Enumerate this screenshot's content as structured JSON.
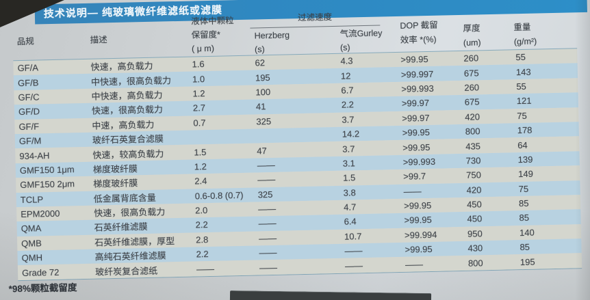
{
  "title_bar": {
    "text": "技术说明— 纯玻璃微纤维滤纸或滤膜"
  },
  "table": {
    "headers": {
      "product": "品规",
      "description": "描述",
      "retention": [
        "液体中颗粒",
        "保留度*",
        "( μ m)"
      ],
      "speed_group": "过滤速度",
      "herzberg": [
        "Herzberg",
        "(s)"
      ],
      "gurley": [
        "气流Gurley",
        "(s)"
      ],
      "dop": [
        "DOP 截留",
        "效率 *(%)"
      ],
      "thickness": [
        "厚度",
        "(um)"
      ],
      "weight": [
        "重量",
        "(g/m²)"
      ]
    },
    "rows": [
      {
        "product": "GF/A",
        "description": "快速，高负载力",
        "retention": "1.6",
        "herzberg": "62",
        "gurley": "4.3",
        "dop": ">99.95",
        "thickness": "260",
        "weight": "55"
      },
      {
        "product": "GF/B",
        "description": "中快速，很高负载力",
        "retention": "1.0",
        "herzberg": "195",
        "gurley": "12",
        "dop": ">99.997",
        "thickness": "675",
        "weight": "143"
      },
      {
        "product": "GF/C",
        "description": "中快速，高负载力",
        "retention": "1.2",
        "herzberg": "100",
        "gurley": "6.7",
        "dop": ">99.993",
        "thickness": "260",
        "weight": "55"
      },
      {
        "product": "GF/D",
        "description": "快速，很高负载力",
        "retention": "2.7",
        "herzberg": "41",
        "gurley": "2.2",
        "dop": ">99.97",
        "thickness": "675",
        "weight": "121"
      },
      {
        "product": "GF/F",
        "description": "中速，高负载力",
        "retention": "0.7",
        "herzberg": "325",
        "gurley": "3.7",
        "dop": ">99.97",
        "thickness": "420",
        "weight": "75"
      },
      {
        "product": "GF/M",
        "description": "玻纤石英复合滤膜",
        "retention": "",
        "herzberg": "",
        "gurley": "14.2",
        "dop": ">99.95",
        "thickness": "800",
        "weight": "178"
      },
      {
        "product": "934-AH",
        "description": "快速，较高负载力",
        "retention": "1.5",
        "herzberg": "47",
        "gurley": "3.7",
        "dop": ">99.95",
        "thickness": "435",
        "weight": "64"
      },
      {
        "product": "GMF150 1μm",
        "description": "梯度玻纤膜",
        "retention": "1.2",
        "herzberg": "——",
        "gurley": "3.1",
        "dop": ">99.993",
        "thickness": "730",
        "weight": "139"
      },
      {
        "product": "GMF150 2μm",
        "description": "梯度玻纤膜",
        "retention": "2.4",
        "herzberg": "——",
        "gurley": "1.5",
        "dop": ">99.7",
        "thickness": "750",
        "weight": "149"
      },
      {
        "product": "TCLP",
        "description": "低金属背底含量",
        "retention": "0.6-0.8 (0.7)",
        "herzberg": "325",
        "gurley": "3.8",
        "dop": "——",
        "thickness": "420",
        "weight": "75"
      },
      {
        "product": "EPM2000",
        "description": "快速，很高负载力",
        "retention": "2.0",
        "herzberg": "——",
        "gurley": "4.7",
        "dop": ">99.95",
        "thickness": "450",
        "weight": "85"
      },
      {
        "product": "QMA",
        "description": "石英纤维滤膜",
        "retention": "2.2",
        "herzberg": "——",
        "gurley": "6.4",
        "dop": ">99.95",
        "thickness": "450",
        "weight": "85"
      },
      {
        "product": "QMB",
        "description": "石英纤维滤膜，厚型",
        "retention": "2.8",
        "herzberg": "——",
        "gurley": "10.7",
        "dop": ">99.994",
        "thickness": "950",
        "weight": "140"
      },
      {
        "product": "QMH",
        "description": "高纯石英纤维滤膜",
        "retention": "2.2",
        "herzberg": "——",
        "gurley": "——",
        "dop": ">99.95",
        "thickness": "430",
        "weight": "85"
      },
      {
        "product": "Grade 72",
        "description": "玻纤炭复合滤纸",
        "retention": "——",
        "herzberg": "——",
        "gurley": "——",
        "dop": "——",
        "thickness": "800",
        "weight": "195"
      }
    ]
  },
  "footnote": "*98%颗粒截留度",
  "colors": {
    "title_bar_blue": "#2f88c1",
    "stripe_blue": "#b8d2e1",
    "stripe_cream": "#d4d6ce",
    "paper": "#d2d6d8",
    "text": "#3e4349",
    "rule_line": "#86a9ba"
  }
}
